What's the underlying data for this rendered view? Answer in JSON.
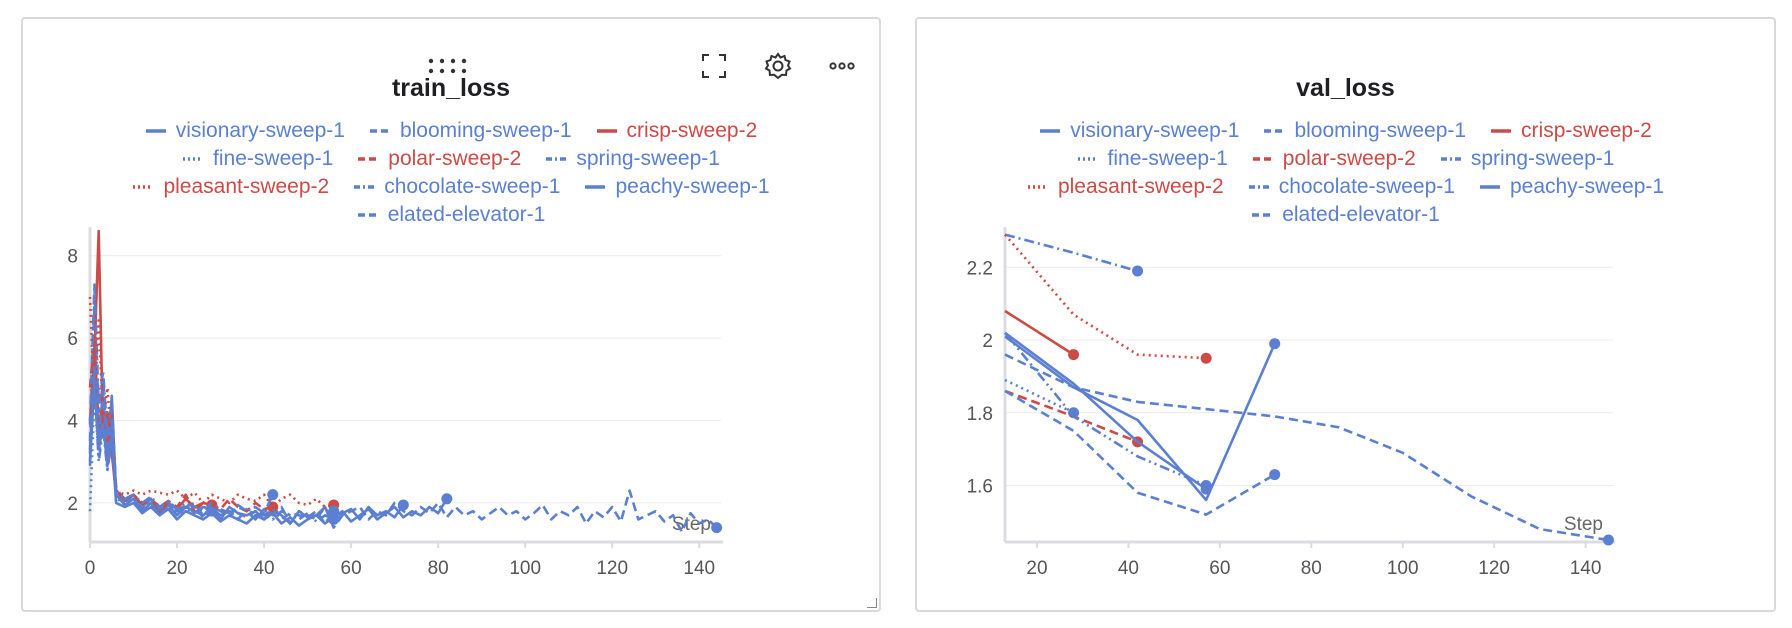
{
  "colors": {
    "blue": "#5b7fd1",
    "red": "#cc4b47",
    "grid": "#ececee",
    "axis": "#dcdce0"
  },
  "icons": {
    "drag": "drag-handle-icon",
    "fullscreen": "fullscreen-icon",
    "settings": "gear-icon",
    "more": "more-icon"
  },
  "legend_rows": [
    [
      0,
      1,
      2
    ],
    [
      3,
      4,
      5
    ],
    [
      6,
      7,
      8
    ],
    [
      9
    ]
  ],
  "chart_data": [
    {
      "type": "line",
      "title": "train_loss",
      "xlabel": "Step",
      "ylabel": "",
      "xlim": [
        0,
        145
      ],
      "ylim": [
        1.1,
        8.6
      ],
      "xticks": [
        0,
        20,
        40,
        60,
        80,
        100,
        120,
        140
      ],
      "yticks": [
        2,
        4,
        6,
        8
      ],
      "series": [
        {
          "name": "visionary-sweep-1",
          "color": "#5b7fd1",
          "dash": "solid",
          "x": [
            0,
            1,
            2,
            3,
            4,
            5,
            6,
            8,
            10,
            12,
            14,
            16,
            18,
            20,
            22,
            24,
            26,
            28,
            30,
            32,
            34,
            36,
            38,
            40,
            42,
            44,
            46,
            48,
            50,
            52,
            54,
            56,
            58,
            60,
            62,
            64,
            66,
            68,
            70,
            72
          ],
          "y": [
            3.2,
            5.8,
            3.5,
            4.4,
            3.0,
            4.6,
            2.2,
            1.95,
            2.1,
            1.8,
            2.0,
            1.75,
            1.95,
            1.7,
            1.9,
            1.8,
            1.7,
            1.85,
            1.6,
            1.9,
            1.75,
            1.7,
            1.8,
            1.6,
            1.85,
            1.7,
            1.5,
            1.8,
            1.65,
            1.7,
            1.9,
            1.5,
            1.75,
            1.85,
            1.6,
            1.9,
            1.7,
            1.8,
            1.65,
            1.95
          ]
        },
        {
          "name": "blooming-sweep-1",
          "color": "#5b7fd1",
          "dash": "dashed",
          "x": [
            0,
            1,
            2,
            3,
            4,
            5,
            6,
            8,
            10,
            12,
            14,
            16,
            18,
            20,
            22,
            24,
            26,
            28,
            30,
            32,
            34,
            36,
            38,
            40,
            42,
            44,
            46,
            48,
            50,
            52,
            54,
            56,
            58,
            60,
            62,
            64,
            66,
            68,
            70,
            72,
            74,
            76,
            78,
            80,
            82,
            84,
            86,
            88,
            90,
            92,
            94,
            96,
            98,
            100,
            102,
            104,
            106,
            108,
            110,
            112,
            114,
            116,
            118,
            120,
            122,
            124,
            126,
            128,
            130,
            132,
            134,
            136,
            138,
            140,
            142,
            144
          ],
          "y": [
            3.5,
            6.8,
            4.2,
            5.0,
            3.4,
            4.1,
            2.4,
            2.0,
            2.2,
            1.9,
            2.1,
            1.8,
            2.0,
            1.85,
            1.9,
            2.0,
            1.7,
            1.9,
            1.8,
            1.7,
            1.9,
            1.8,
            1.6,
            1.85,
            1.7,
            1.9,
            1.5,
            1.8,
            1.7,
            1.6,
            1.9,
            1.4,
            1.7,
            1.8,
            1.9,
            1.6,
            1.8,
            1.7,
            2.0,
            1.8,
            1.7,
            1.9,
            1.75,
            2.0,
            1.65,
            1.9,
            1.7,
            1.8,
            1.6,
            1.75,
            1.9,
            1.7,
            1.8,
            1.6,
            1.75,
            1.95,
            1.6,
            1.8,
            1.7,
            1.9,
            1.5,
            1.8,
            1.65,
            1.9,
            1.55,
            2.3,
            1.6,
            1.7,
            1.8,
            1.55,
            1.7,
            1.3,
            1.75,
            1.5,
            1.6,
            1.4
          ]
        },
        {
          "name": "crisp-sweep-2",
          "color": "#cc4b47",
          "dash": "solid",
          "x": [
            0,
            1,
            2,
            3,
            4,
            5,
            6,
            8,
            10,
            12,
            14,
            16,
            18,
            20,
            22,
            24,
            26,
            28
          ],
          "y": [
            4.0,
            5.5,
            8.6,
            3.6,
            4.2,
            3.2,
            2.2,
            2.05,
            2.2,
            1.95,
            2.1,
            1.8,
            2.0,
            1.85,
            2.1,
            1.9,
            2.0,
            1.95
          ]
        },
        {
          "name": "fine-sweep-1",
          "color": "#5b7fd1",
          "dash": "dotted",
          "x": [
            0,
            1,
            2,
            3,
            4,
            5,
            6,
            8,
            10,
            12,
            14,
            16,
            18,
            20,
            22,
            24,
            26,
            28
          ],
          "y": [
            1.8,
            4.6,
            3.1,
            4.0,
            2.8,
            3.8,
            2.1,
            2.0,
            2.1,
            1.9,
            2.0,
            1.75,
            1.9,
            1.8,
            1.85,
            1.7,
            1.9,
            1.8
          ]
        },
        {
          "name": "polar-sweep-2",
          "color": "#cc4b47",
          "dash": "dashed",
          "x": [
            0,
            1,
            2,
            3,
            4,
            5,
            6,
            8,
            10,
            12,
            14,
            16,
            18,
            20,
            22,
            24,
            26,
            28,
            30,
            32,
            34,
            36,
            38,
            40,
            42
          ],
          "y": [
            4.8,
            6.0,
            3.8,
            4.5,
            3.5,
            4.2,
            2.3,
            2.1,
            2.2,
            2.0,
            2.1,
            1.9,
            2.05,
            1.9,
            2.2,
            1.8,
            2.0,
            1.95,
            1.85,
            2.1,
            1.9,
            1.8,
            2.0,
            1.85,
            1.9
          ]
        },
        {
          "name": "spring-sweep-1",
          "color": "#5b7fd1",
          "dash": "dashdot",
          "x": [
            0,
            1,
            2,
            3,
            4,
            5,
            6,
            8,
            10,
            12,
            14,
            16,
            18,
            20,
            22,
            24,
            26,
            28,
            30,
            32,
            34,
            36,
            38,
            40,
            42
          ],
          "y": [
            3.9,
            7.3,
            4.4,
            5.2,
            3.6,
            4.5,
            2.3,
            2.1,
            2.2,
            2.0,
            2.15,
            1.9,
            2.05,
            1.85,
            2.0,
            1.9,
            1.8,
            2.0,
            1.85,
            1.75,
            1.95,
            1.8,
            1.9,
            1.75,
            2.2
          ]
        },
        {
          "name": "pleasant-sweep-2",
          "color": "#cc4b47",
          "dash": "dotted",
          "x": [
            0,
            1,
            2,
            3,
            4,
            5,
            6,
            8,
            10,
            12,
            14,
            16,
            18,
            20,
            22,
            24,
            26,
            28,
            30,
            32,
            34,
            36,
            38,
            40,
            42,
            44,
            46,
            48,
            50,
            52,
            54,
            56
          ],
          "y": [
            7.0,
            4.3,
            6.5,
            3.9,
            4.8,
            3.4,
            2.3,
            2.2,
            2.3,
            2.2,
            2.3,
            2.25,
            2.2,
            2.3,
            2.1,
            2.25,
            2.0,
            2.2,
            2.1,
            2.0,
            2.2,
            2.1,
            2.05,
            2.2,
            1.9,
            2.1,
            2.2,
            2.0,
            1.95,
            2.1,
            1.9,
            1.95
          ]
        },
        {
          "name": "chocolate-sweep-1",
          "color": "#5b7fd1",
          "dash": "dashdotdot",
          "x": [
            0,
            1,
            2,
            3,
            4,
            5,
            6,
            8,
            10,
            12,
            14,
            16,
            18,
            20,
            22,
            24,
            26,
            28,
            30,
            32,
            34,
            36,
            38,
            40,
            42,
            44,
            46,
            48,
            50,
            52,
            54,
            56
          ],
          "y": [
            3.3,
            5.0,
            3.0,
            3.8,
            2.8,
            3.5,
            2.2,
            2.0,
            2.1,
            1.85,
            2.0,
            1.7,
            1.9,
            1.8,
            1.75,
            1.9,
            1.65,
            1.85,
            1.7,
            1.8,
            1.6,
            1.85,
            1.7,
            1.75,
            1.6,
            1.8,
            1.7,
            1.6,
            1.75,
            1.55,
            1.7,
            1.6
          ]
        },
        {
          "name": "peachy-sweep-1",
          "color": "#5b7fd1",
          "dash": "solid",
          "x": [
            0,
            1,
            2,
            3,
            4,
            5,
            6,
            8,
            10,
            12,
            14,
            16,
            18,
            20,
            22,
            24,
            26,
            28,
            30,
            32,
            34,
            36,
            38,
            40,
            42,
            44,
            46,
            48,
            50,
            52,
            54,
            56,
            58,
            60,
            62,
            64,
            66,
            68,
            70,
            72,
            74,
            76,
            78,
            80,
            82
          ],
          "y": [
            3.0,
            4.9,
            3.3,
            3.9,
            2.9,
            3.6,
            2.0,
            1.9,
            2.0,
            1.75,
            1.9,
            1.7,
            1.85,
            1.6,
            1.8,
            1.7,
            1.6,
            1.75,
            1.55,
            1.7,
            1.6,
            1.5,
            1.7,
            1.6,
            1.75,
            1.5,
            1.65,
            1.45,
            1.6,
            1.7,
            1.5,
            1.65,
            1.8,
            1.55,
            1.7,
            1.85,
            1.6,
            1.75,
            1.9,
            1.65,
            1.8,
            1.7,
            1.9,
            1.75,
            2.1
          ]
        },
        {
          "name": "elated-elevator-1",
          "color": "#5b7fd1",
          "dash": "dashed",
          "x": [
            0,
            1,
            2,
            3,
            4,
            5,
            6,
            8,
            10,
            12,
            14,
            16,
            18,
            20,
            22,
            24,
            26,
            28,
            30,
            32,
            34,
            36,
            38,
            40,
            42,
            44,
            46,
            48,
            50,
            52,
            54,
            56
          ],
          "y": [
            2.9,
            5.3,
            3.6,
            4.7,
            3.2,
            4.0,
            2.2,
            2.1,
            2.05,
            1.9,
            2.1,
            1.85,
            2.0,
            1.8,
            1.95,
            1.75,
            1.9,
            1.85,
            1.7,
            1.8,
            1.75,
            1.65,
            1.8,
            1.7,
            1.85,
            1.6,
            1.75,
            1.7,
            1.65,
            1.8,
            1.5,
            1.8
          ]
        }
      ]
    },
    {
      "type": "line",
      "title": "val_loss",
      "xlabel": "Step",
      "ylabel": "",
      "xlim": [
        13,
        146
      ],
      "ylim": [
        1.45,
        2.3
      ],
      "xticks": [
        20,
        40,
        60,
        80,
        100,
        120,
        140
      ],
      "yticks": [
        1.6,
        1.8,
        2,
        2.2
      ],
      "series": [
        {
          "name": "visionary-sweep-1",
          "color": "#5b7fd1",
          "dash": "solid",
          "x": [
            13,
            28,
            42,
            57,
            72
          ],
          "y": [
            2.01,
            1.87,
            1.78,
            1.56,
            1.99
          ]
        },
        {
          "name": "blooming-sweep-1",
          "color": "#5b7fd1",
          "dash": "dashed",
          "x": [
            13,
            28,
            42,
            57,
            72,
            86,
            100,
            115,
            130,
            145
          ],
          "y": [
            1.96,
            1.87,
            1.83,
            1.81,
            1.79,
            1.76,
            1.69,
            1.57,
            1.48,
            1.45
          ]
        },
        {
          "name": "crisp-sweep-2",
          "color": "#cc4b47",
          "dash": "solid",
          "x": [
            13,
            28
          ],
          "y": [
            2.08,
            1.96
          ]
        },
        {
          "name": "fine-sweep-1",
          "color": "#5b7fd1",
          "dash": "dotted",
          "x": [
            13,
            28
          ],
          "y": [
            1.89,
            1.8
          ]
        },
        {
          "name": "polar-sweep-2",
          "color": "#cc4b47",
          "dash": "dashed",
          "x": [
            13,
            28,
            42
          ],
          "y": [
            1.86,
            1.79,
            1.72
          ]
        },
        {
          "name": "spring-sweep-1",
          "color": "#5b7fd1",
          "dash": "dashdot",
          "x": [
            13,
            28,
            42
          ],
          "y": [
            2.29,
            2.24,
            2.19
          ]
        },
        {
          "name": "pleasant-sweep-2",
          "color": "#cc4b47",
          "dash": "dotted",
          "x": [
            13,
            28,
            42,
            57
          ],
          "y": [
            2.29,
            2.07,
            1.96,
            1.95
          ]
        },
        {
          "name": "chocolate-sweep-1",
          "color": "#5b7fd1",
          "dash": "dashdotdot",
          "x": [
            13,
            28,
            42,
            57
          ],
          "y": [
            2.02,
            1.79,
            1.68,
            1.6
          ]
        },
        {
          "name": "peachy-sweep-1",
          "color": "#5b7fd1",
          "dash": "solid",
          "x": [
            13,
            28,
            42,
            57
          ],
          "y": [
            2.02,
            1.88,
            1.72,
            1.59
          ]
        },
        {
          "name": "elated-elevator-1",
          "color": "#5b7fd1",
          "dash": "dashed",
          "x": [
            13,
            28,
            42,
            57,
            72
          ],
          "y": [
            1.86,
            1.75,
            1.58,
            1.52,
            1.63
          ]
        }
      ]
    }
  ]
}
